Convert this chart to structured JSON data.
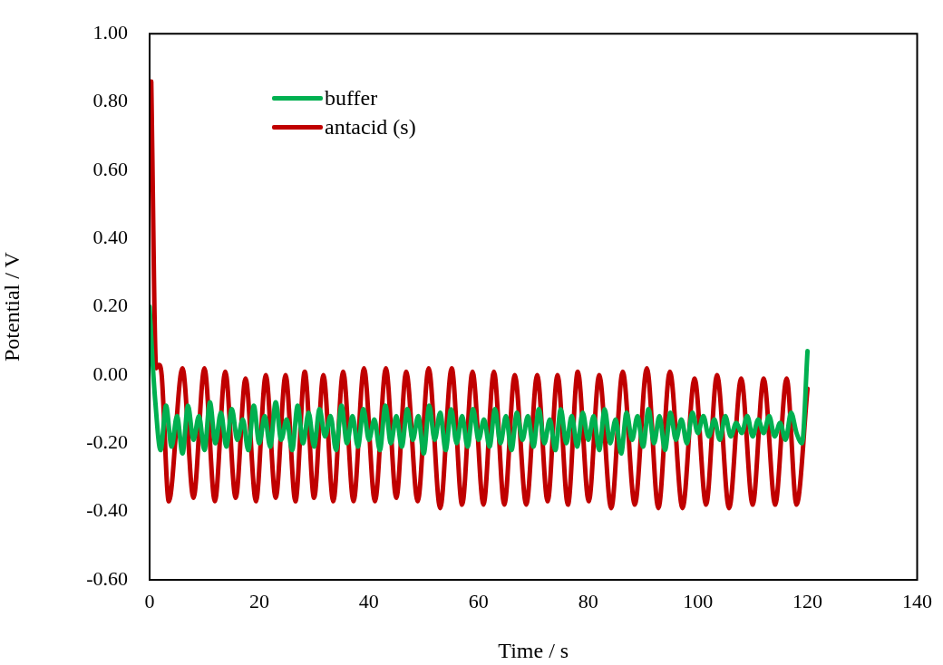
{
  "chart_data": {
    "type": "line",
    "xlabel": "Time / s",
    "ylabel": "Potential / V",
    "xlim": [
      0,
      140
    ],
    "xticks": [
      0,
      20,
      40,
      60,
      80,
      100,
      120,
      140
    ],
    "ylim": [
      -0.6,
      1.0
    ],
    "yticks": [
      {
        "value": -0.6,
        "label": "-0.60"
      },
      {
        "value": -0.4,
        "label": "-0.40"
      },
      {
        "value": -0.2,
        "label": "-0.20"
      },
      {
        "value": 0,
        "label": "0.00"
      },
      {
        "value": 0.2,
        "label": "0.20"
      },
      {
        "value": 0.4,
        "label": "0.40"
      },
      {
        "value": 0.6,
        "label": "0.60"
      },
      {
        "value": 0.8,
        "label": "0.80"
      },
      {
        "value": 1.0,
        "label": "1.00"
      }
    ],
    "grid": false,
    "legend": "top left",
    "marker": "none",
    "line_style": "solid",
    "series": [
      {
        "name": "buffer",
        "color": "#00b050",
        "x": [
          0,
          0.5,
          1,
          2,
          3,
          4,
          5,
          6,
          7,
          8,
          9,
          10,
          11,
          12,
          13,
          14,
          15,
          16,
          17,
          18,
          19,
          20,
          21,
          22,
          23,
          24,
          25,
          26,
          27,
          28,
          29,
          30,
          31,
          32,
          33,
          34,
          35,
          36,
          37,
          38,
          39,
          40,
          41,
          42,
          43,
          44,
          45,
          46,
          47,
          48,
          49,
          50,
          51,
          52,
          53,
          54,
          55,
          56,
          57,
          58,
          59,
          60,
          61,
          62,
          63,
          64,
          65,
          66,
          67,
          68,
          69,
          70,
          71,
          72,
          73,
          74,
          75,
          76,
          77,
          78,
          79,
          80,
          81,
          82,
          83,
          84,
          85,
          86,
          87,
          88,
          89,
          90,
          91,
          92,
          93,
          94,
          95,
          96,
          97,
          98,
          99,
          100,
          101,
          102,
          103,
          104,
          105,
          106,
          107,
          108,
          109,
          110,
          111,
          112,
          113,
          114,
          115,
          116,
          117,
          118,
          119,
          120
        ],
        "values": [
          0.2,
          0.05,
          -0.07,
          -0.22,
          -0.09,
          -0.21,
          -0.12,
          -0.23,
          -0.09,
          -0.19,
          -0.12,
          -0.22,
          -0.08,
          -0.2,
          -0.11,
          -0.21,
          -0.1,
          -0.19,
          -0.13,
          -0.22,
          -0.09,
          -0.2,
          -0.12,
          -0.21,
          -0.08,
          -0.19,
          -0.13,
          -0.22,
          -0.09,
          -0.2,
          -0.11,
          -0.21,
          -0.1,
          -0.18,
          -0.12,
          -0.22,
          -0.09,
          -0.2,
          -0.12,
          -0.21,
          -0.1,
          -0.19,
          -0.13,
          -0.22,
          -0.09,
          -0.2,
          -0.12,
          -0.21,
          -0.1,
          -0.19,
          -0.12,
          -0.23,
          -0.09,
          -0.19,
          -0.11,
          -0.22,
          -0.1,
          -0.2,
          -0.12,
          -0.21,
          -0.1,
          -0.19,
          -0.13,
          -0.21,
          -0.1,
          -0.2,
          -0.12,
          -0.22,
          -0.11,
          -0.19,
          -0.12,
          -0.21,
          -0.1,
          -0.2,
          -0.13,
          -0.22,
          -0.1,
          -0.2,
          -0.12,
          -0.21,
          -0.11,
          -0.19,
          -0.12,
          -0.22,
          -0.1,
          -0.2,
          -0.13,
          -0.23,
          -0.11,
          -0.19,
          -0.12,
          -0.21,
          -0.1,
          -0.2,
          -0.12,
          -0.22,
          -0.11,
          -0.19,
          -0.13,
          -0.2,
          -0.11,
          -0.17,
          -0.12,
          -0.18,
          -0.13,
          -0.19,
          -0.12,
          -0.18,
          -0.14,
          -0.17,
          -0.12,
          -0.18,
          -0.13,
          -0.17,
          -0.12,
          -0.18,
          -0.14,
          -0.19,
          -0.11,
          -0.17,
          -0.2,
          0.07
        ]
      },
      {
        "name": "antacid (s)",
        "color": "#c00000",
        "x": [
          0.3,
          1.2,
          1.7,
          2.2,
          3.5,
          6.0,
          8.0,
          10.0,
          11.9,
          13.8,
          15.7,
          17.5,
          19.4,
          21.2,
          23.0,
          24.8,
          26.6,
          28.3,
          30.0,
          31.7,
          33.5,
          35.3,
          37.2,
          39.1,
          41.1,
          43.1,
          45.0,
          46.8,
          48.9,
          50.9,
          53.0,
          55.1,
          57.0,
          58.9,
          60.9,
          62.8,
          64.7,
          66.6,
          68.7,
          70.7,
          72.6,
          74.4,
          76.3,
          78.1,
          80.1,
          82.0,
          84.2,
          86.3,
          88.5,
          90.7,
          92.8,
          94.9,
          97.2,
          99.4,
          101.5,
          103.5,
          105.7,
          107.9,
          110.0,
          112.0,
          114.1,
          116.2,
          118.0,
          120.0
        ],
        "values": [
          0.86,
          0.02,
          0.03,
          0.0,
          -0.37,
          0.02,
          -0.36,
          0.02,
          -0.37,
          0.01,
          -0.36,
          -0.01,
          -0.37,
          0.0,
          -0.36,
          0.0,
          -0.37,
          0.01,
          -0.36,
          0.0,
          -0.37,
          0.01,
          -0.37,
          0.02,
          -0.37,
          0.02,
          -0.36,
          0.01,
          -0.37,
          0.02,
          -0.39,
          0.02,
          -0.38,
          0.01,
          -0.38,
          0.01,
          -0.38,
          0.0,
          -0.38,
          0.0,
          -0.37,
          0.0,
          -0.38,
          0.01,
          -0.37,
          0.0,
          -0.39,
          0.01,
          -0.38,
          0.02,
          -0.39,
          0.01,
          -0.39,
          -0.01,
          -0.38,
          0.0,
          -0.39,
          -0.01,
          -0.38,
          -0.01,
          -0.38,
          -0.01,
          -0.38,
          -0.04
        ]
      }
    ]
  }
}
